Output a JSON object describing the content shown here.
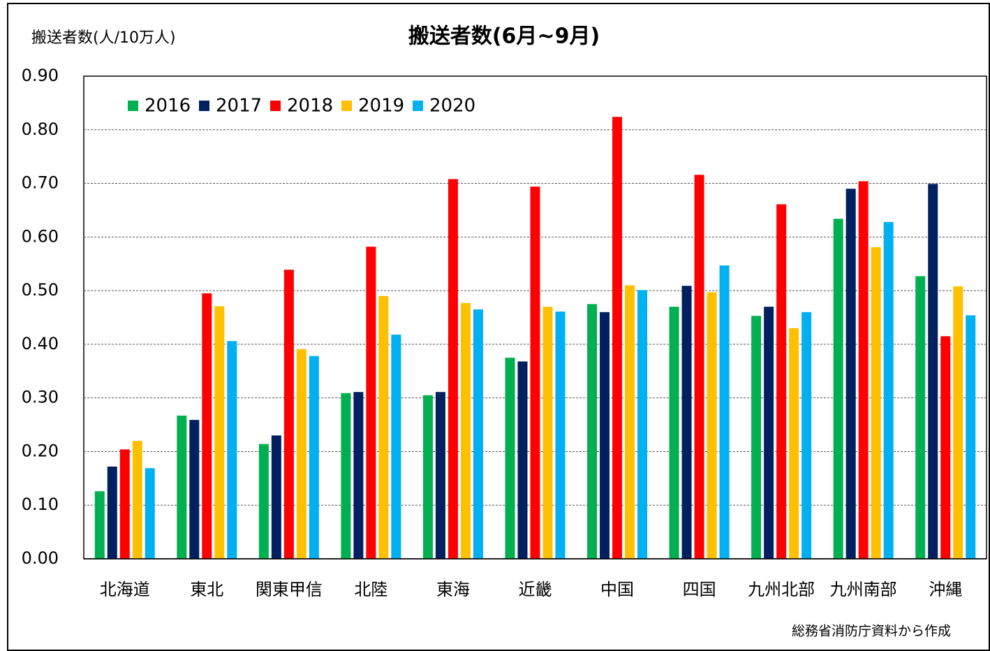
{
  "chart_data": {
    "type": "bar",
    "title": "搬送者数(6月~9月)",
    "y_label": "搬送者数(人/10万人)",
    "note": "総務省消防庁資料から作成",
    "categories": [
      "北海道",
      "東北",
      "関東甲信",
      "北陸",
      "東海",
      "近畿",
      "中国",
      "四国",
      "九州北部",
      "九州南部",
      "沖縄"
    ],
    "series": [
      {
        "name": "2016",
        "color": "#00b050",
        "values": [
          0.126,
          0.267,
          0.214,
          0.309,
          0.305,
          0.375,
          0.475,
          0.47,
          0.453,
          0.634,
          0.527
        ]
      },
      {
        "name": "2017",
        "color": "#002060",
        "values": [
          0.172,
          0.259,
          0.23,
          0.311,
          0.311,
          0.368,
          0.46,
          0.509,
          0.47,
          0.69,
          0.699
        ]
      },
      {
        "name": "2018",
        "color": "#ff0000",
        "values": [
          0.204,
          0.495,
          0.539,
          0.582,
          0.708,
          0.694,
          0.824,
          0.716,
          0.661,
          0.704,
          0.415
        ]
      },
      {
        "name": "2019",
        "color": "#ffc000",
        "values": [
          0.22,
          0.471,
          0.391,
          0.49,
          0.477,
          0.47,
          0.51,
          0.497,
          0.43,
          0.581,
          0.508
        ]
      },
      {
        "name": "2020",
        "color": "#00b0f0",
        "values": [
          0.169,
          0.406,
          0.378,
          0.418,
          0.465,
          0.461,
          0.501,
          0.547,
          0.46,
          0.628,
          0.454
        ]
      }
    ],
    "ylim": [
      0,
      0.9
    ],
    "yticks": [
      {
        "value": 0,
        "label": "0.00"
      },
      {
        "value": 0.1,
        "label": "0.10"
      },
      {
        "value": 0.2,
        "label": "0.20"
      },
      {
        "value": 0.3,
        "label": "0.30"
      },
      {
        "value": 0.4,
        "label": "0.40"
      },
      {
        "value": 0.5,
        "label": "0.50"
      },
      {
        "value": 0.6,
        "label": "0.60"
      },
      {
        "value": 0.7,
        "label": "0.70"
      },
      {
        "value": 0.8,
        "label": "0.80"
      },
      {
        "value": 0.9,
        "label": "0.90"
      }
    ],
    "grid": true,
    "legend": "top-left"
  }
}
